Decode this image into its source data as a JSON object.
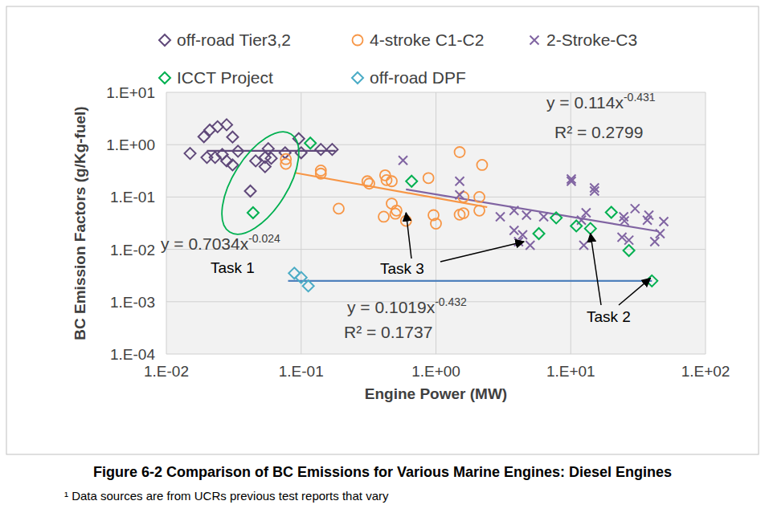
{
  "chart_data": {
    "type": "scatter",
    "x_label": "Engine Power (MW)",
    "y_label": "BC Emission Factors (g/Kg-fuel)",
    "log": true,
    "grid": true,
    "legend": "top",
    "xlim": [
      0.01,
      100
    ],
    "ylim": [
      0.0001,
      10
    ],
    "xticks": [
      {
        "value": 0.01,
        "label": "1.E-02"
      },
      {
        "value": 0.1,
        "label": "1.E-01"
      },
      {
        "value": 1,
        "label": "1.E+00"
      },
      {
        "value": 10,
        "label": "1.E+01"
      },
      {
        "value": 100,
        "label": "1.E+02"
      }
    ],
    "yticks": [
      {
        "value": 0.0001,
        "label": "1.E-04"
      },
      {
        "value": 0.001,
        "label": "1.E-03"
      },
      {
        "value": 0.01,
        "label": "1.E-02"
      },
      {
        "value": 0.1,
        "label": "1.E-01"
      },
      {
        "value": 1,
        "label": "1.E+00"
      },
      {
        "value": 10,
        "label": "1.E+01"
      }
    ],
    "series": [
      {
        "name": "off-road Tier3,2",
        "color": "#60497a",
        "marker": "diamond",
        "x": [
          0.015,
          0.019,
          0.021,
          0.024,
          0.028,
          0.031,
          0.034,
          0.02,
          0.023,
          0.026,
          0.028,
          0.031,
          0.042,
          0.046,
          0.054,
          0.057,
          0.06,
          0.076,
          0.054,
          0.096,
          0.1,
          0.14,
          0.17
        ],
        "values": [
          0.68,
          1.42,
          1.9,
          2.2,
          2.4,
          1.4,
          0.75,
          0.57,
          0.57,
          0.65,
          0.49,
          0.41,
          0.13,
          0.49,
          0.57,
          0.84,
          0.55,
          0.7,
          0.38,
          1.3,
          0.7,
          0.81,
          0.81
        ]
      },
      {
        "name": "4-stroke C1-C2",
        "color": "#f79646",
        "marker": "circle",
        "x": [
          0.077,
          0.077,
          0.14,
          0.14,
          0.19,
          0.31,
          0.32,
          0.42,
          0.43,
          0.47,
          0.47,
          0.41,
          0.51,
          0.6,
          0.5,
          0.88,
          0.96,
          1.0,
          1.5,
          1.5,
          1.6,
          1.6,
          2.1,
          2.1,
          2.2
        ],
        "values": [
          0.43,
          0.53,
          0.32,
          0.28,
          0.06,
          0.2,
          0.18,
          0.26,
          0.21,
          0.2,
          0.075,
          0.042,
          0.055,
          0.035,
          0.048,
          0.23,
          0.045,
          0.031,
          0.72,
          0.046,
          0.049,
          0.1,
          0.1,
          0.055,
          0.41
        ]
      },
      {
        "name": "2-Stroke-C3",
        "color": "#8064a2",
        "marker": "x",
        "x": [
          0.57,
          1.5,
          1.5,
          3.0,
          3.8,
          3.8,
          4.1,
          4.4,
          4.7,
          5.0,
          6.3,
          10.1,
          10.1,
          12,
          12.5,
          13,
          15,
          15,
          24,
          24.7,
          25,
          27,
          30,
          37,
          38,
          42,
          46,
          49
        ],
        "values": [
          0.5,
          0.2,
          0.11,
          0.042,
          0.055,
          0.023,
          0.014,
          0.019,
          0.045,
          0.012,
          0.042,
          0.22,
          0.2,
          0.036,
          0.012,
          0.05,
          0.15,
          0.13,
          0.017,
          0.042,
          0.035,
          0.015,
          0.06,
          0.036,
          0.045,
          0.014,
          0.02,
          0.034
        ]
      },
      {
        "name": "ICCT Project",
        "color": "#00b050",
        "marker": "diamond",
        "x": [
          0.044,
          0.117,
          0.66,
          5.8,
          7.8,
          11,
          14,
          20,
          27,
          40
        ],
        "values": [
          0.05,
          1.07,
          0.2,
          0.02,
          0.04,
          0.028,
          0.025,
          0.051,
          0.0095,
          0.0025
        ]
      },
      {
        "name": "off-road DPF",
        "color": "#4bacc6",
        "marker": "diamond",
        "x": [
          0.089,
          0.1,
          0.113
        ],
        "values": [
          0.0035,
          0.0029,
          0.002
        ]
      }
    ],
    "trendlines": [
      {
        "color": "#60497a",
        "x": [
          0.02,
          0.18
        ],
        "values": [
          0.76,
          0.76
        ],
        "equation": "y = 0.7034x",
        "exponent": "-0.024"
      },
      {
        "color": "#f79646",
        "x": [
          0.09,
          2.4
        ],
        "values": [
          0.29,
          0.064
        ],
        "equation": "y = 0.1019x",
        "exponent": "-0.432",
        "r2": "R² = 0.1737"
      },
      {
        "color": "#8064a2",
        "x": [
          0.6,
          45
        ],
        "values": [
          0.14,
          0.022
        ],
        "equation": "y = 0.114x",
        "exponent": "-0.431",
        "r2": "R² = 0.2799"
      },
      {
        "color": "#4f81bd",
        "x": [
          0.08,
          40
        ],
        "values": [
          0.0025,
          0.0025
        ]
      }
    ],
    "annotations": [
      {
        "text": "Task 1"
      },
      {
        "text": "Task 3",
        "x": [
          0.6,
          4.5
        ],
        "y": [
          0.05,
          0.014
        ]
      },
      {
        "text": "Task 2",
        "x": [
          14,
          39
        ],
        "y": [
          0.02,
          0.0028
        ]
      }
    ]
  },
  "caption": "Figure 6-2 Comparison of BC Emissions for Various Marine Engines: Diesel Engines",
  "footnote": "¹ Data sources are from UCRs previous test reports that vary"
}
